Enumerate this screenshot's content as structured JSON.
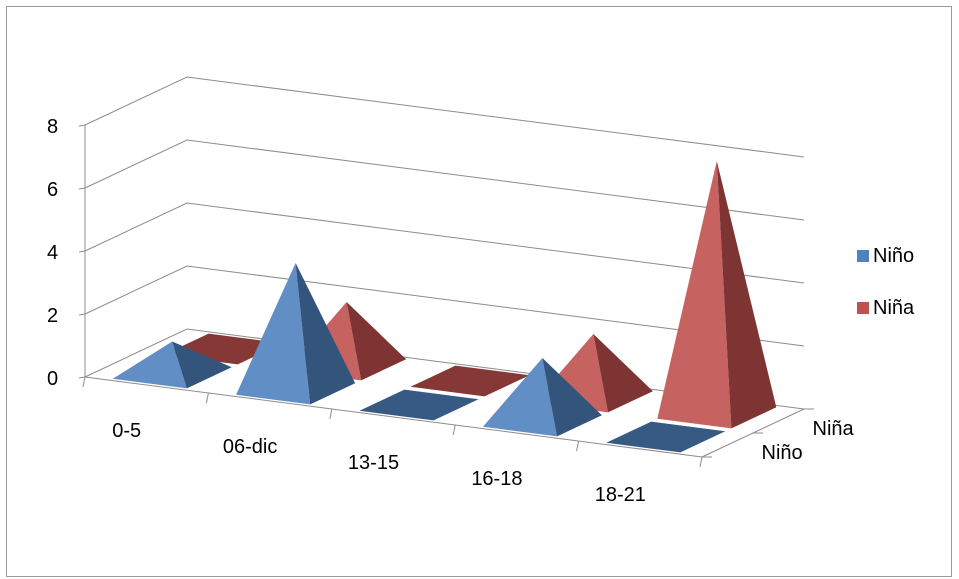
{
  "chart_data": {
    "type": "bar",
    "style": "3d-pyramid",
    "title": "",
    "xlabel": "",
    "ylabel": "",
    "categories": [
      "0-5",
      "06-dic",
      "13-15",
      "16-18",
      "18-21"
    ],
    "series": [
      {
        "name": "Niño",
        "values": [
          1,
          4,
          0,
          2,
          0
        ],
        "color": "#4f81bd"
      },
      {
        "name": "Niña",
        "values": [
          0,
          2,
          0,
          2,
          8
        ],
        "color": "#c0504d"
      }
    ],
    "ylim": [
      0,
      8
    ],
    "yticks": [
      "0",
      "2",
      "4",
      "6",
      "8"
    ],
    "depth_labels": [
      "Niño",
      "Niña"
    ],
    "grid": true,
    "legend": "right"
  }
}
